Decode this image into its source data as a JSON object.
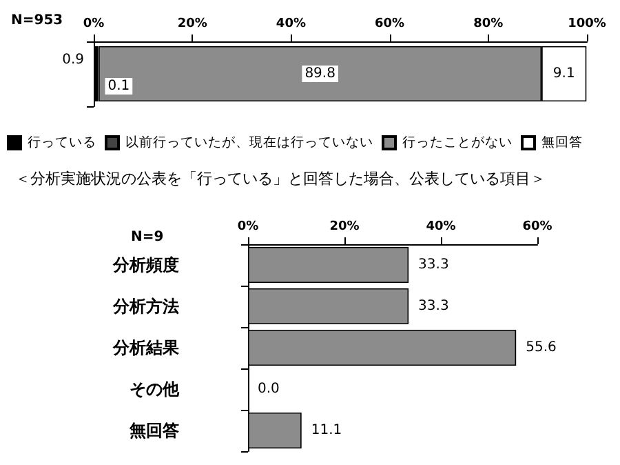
{
  "chart_data": [
    {
      "type": "bar",
      "orientation": "horizontal",
      "stacked": true,
      "categories": [
        null
      ],
      "xlim": [
        0,
        100
      ],
      "xticks": [
        {
          "value": 0,
          "label": "0%"
        },
        {
          "value": 20,
          "label": "20%"
        },
        {
          "value": 40,
          "label": "40%"
        },
        {
          "value": 60,
          "label": "60%"
        },
        {
          "value": 80,
          "label": "80%"
        },
        {
          "value": 100,
          "label": "100%"
        }
      ],
      "data_labels": true,
      "legend": "bottom",
      "grid": false,
      "annotations": [
        "N=953"
      ],
      "series": [
        {
          "name": "行っている",
          "color": "#000000",
          "values": [
            0.9
          ]
        },
        {
          "name": "以前行っていたが、現在は行っていない",
          "color": "#444444",
          "values": [
            0.1
          ]
        },
        {
          "name": "行ったことがない",
          "color": "#8c8c8c",
          "values": [
            89.8
          ]
        },
        {
          "name": "無回答",
          "color": "#ffffff",
          "values": [
            9.1
          ]
        }
      ]
    },
    {
      "type": "bar",
      "orientation": "horizontal",
      "title": "＜分析実施状況の公表を「行っている」と回答した場合、公表している項目＞",
      "categories": [
        "分析頻度",
        "分析方法",
        "分析結果",
        "その他",
        "無回答"
      ],
      "xlim": [
        0,
        60
      ],
      "xticks": [
        {
          "value": 0,
          "label": "0%"
        },
        {
          "value": 20,
          "label": "20%"
        },
        {
          "value": 40,
          "label": "40%"
        },
        {
          "value": 60,
          "label": "60%"
        }
      ],
      "grid": false,
      "annotations": [
        "N=9"
      ],
      "values": [
        33.3,
        33.3,
        55.6,
        0.0,
        11.1
      ],
      "value_labels": [
        "33.3",
        "33.3",
        "55.6",
        "0.0",
        "11.1"
      ],
      "color": "#8c8c8c"
    }
  ]
}
